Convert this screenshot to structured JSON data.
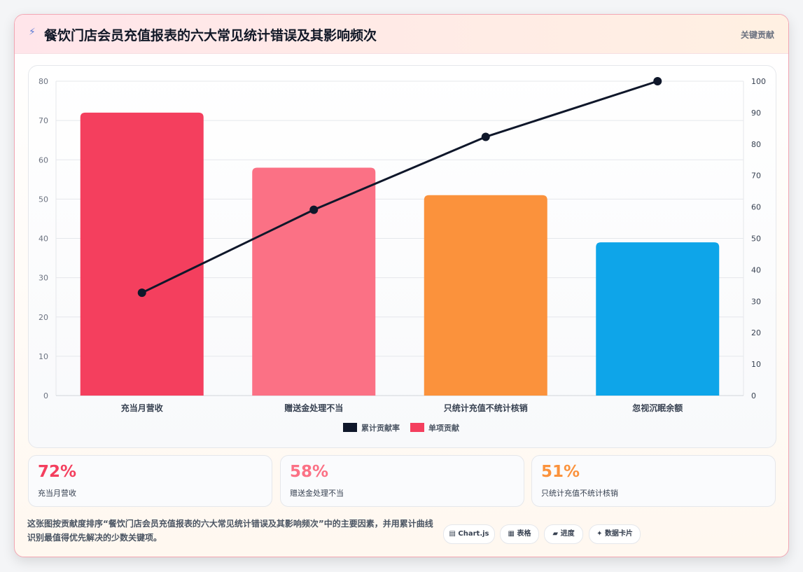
{
  "header": {
    "icon": "lightning-icon",
    "title": "餐饮门店会员充值报表的六大常见统计错误及其影响频次",
    "badge": "关键贡献"
  },
  "chart_data": {
    "type": "bar",
    "categories": [
      "充当月营收",
      "赠送金处理不当",
      "只统计充值不统计核销",
      "忽视沉眠余额"
    ],
    "series": [
      {
        "name": "单项贡献",
        "type": "bar",
        "axis": "left",
        "values": [
          72,
          58,
          51,
          39
        ],
        "colors": [
          "#f43f5e",
          "#fb7185",
          "#fb923c",
          "#0ea5e9"
        ]
      },
      {
        "name": "累计贡献率",
        "type": "line",
        "axis": "right",
        "values": [
          32.7,
          59.1,
          82.3,
          100
        ],
        "color": "#0f172a"
      }
    ],
    "y_left": {
      "min": 0,
      "max": 80,
      "ticks": [
        0,
        10,
        20,
        30,
        40,
        50,
        60,
        70,
        80
      ]
    },
    "y_right": {
      "min": 0,
      "max": 100,
      "ticks": [
        0,
        10,
        20,
        30,
        40,
        50,
        60,
        70,
        80,
        90,
        100
      ]
    },
    "grid": true,
    "legend": "bottom-center",
    "legend_items": [
      {
        "name": "累计贡献率",
        "color": "#0f172a"
      },
      {
        "name": "单项贡献",
        "color": "#f43f5e"
      }
    ]
  },
  "stats": [
    {
      "value": "72%",
      "label": "充当月营收",
      "color": "#f43f5e"
    },
    {
      "value": "58%",
      "label": "赠送金处理不当",
      "color": "#fb7185"
    },
    {
      "value": "51%",
      "label": "只统计充值不统计核销",
      "color": "#fb923c"
    }
  ],
  "note": "这张图按贡献度排序“餐饮门店会员充值报表的六大常见统计错误及其影响频次”中的主要因素，并用累计曲线识别最值得优先解决的少数关键项。",
  "chips": [
    {
      "icon": "chart-icon",
      "glyph": "▤",
      "label": "Chart.js"
    },
    {
      "icon": "table-icon",
      "glyph": "▦",
      "label": "表格"
    },
    {
      "icon": "progress-icon",
      "glyph": "▰",
      "label": "进度"
    },
    {
      "icon": "sparkle-icon",
      "glyph": "✦",
      "label": "数据卡片"
    }
  ]
}
